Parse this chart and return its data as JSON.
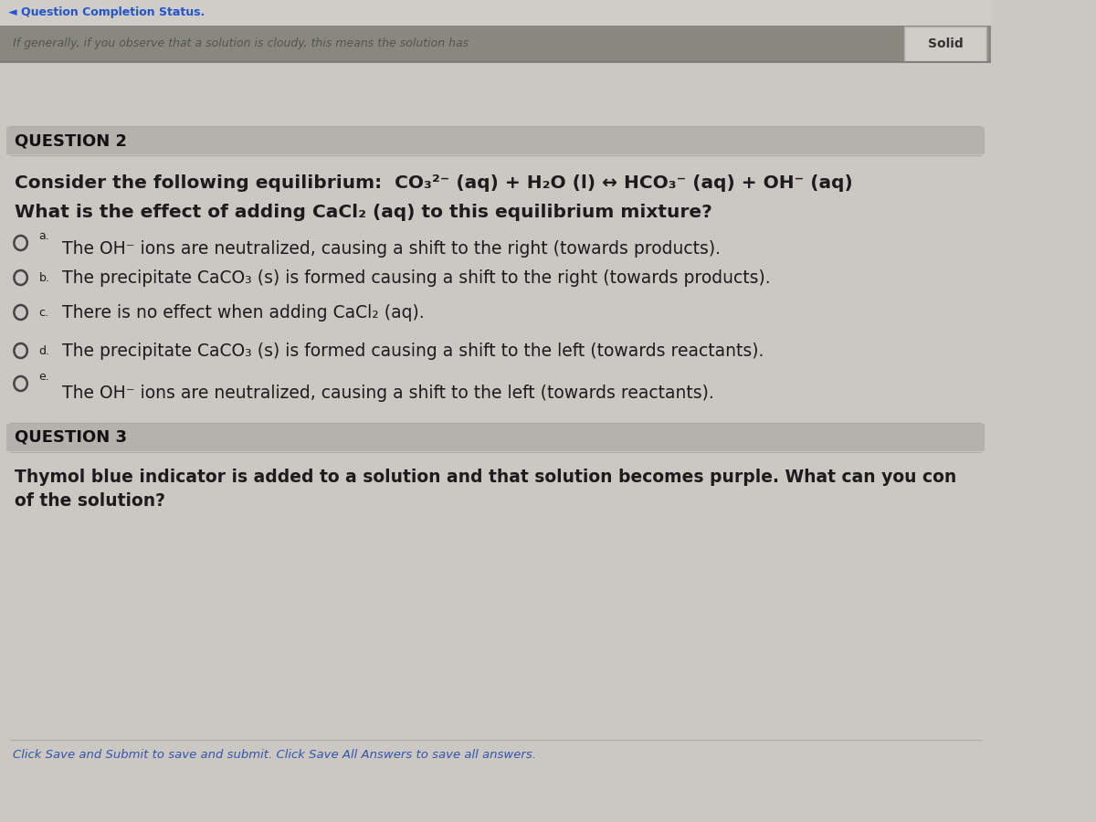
{
  "bg_color": "#cbc7c3",
  "header_bg": "#2a2a2a",
  "section_header_bg": "#b8b4b0",
  "title1": "QUESTION 2",
  "title2": "QUESTION 3",
  "eq_line1": "Consider the following equilibrium:  CO₃²⁻ (aq) + H₂O (l) ↔ HCO₃⁻ (aq) + OH⁻ (aq)",
  "eq_line2": "What is the effect of adding CaCl₂ (aq) to this equilibrium mixture?",
  "option_a_label": "a.",
  "option_a_text": "The OH⁻ ions are neutralized, causing a shift to the right (towards products).",
  "option_b_label": "b.",
  "option_b_text": "The precipitate CaCO₃ (s) is formed causing a shift to the right (towards products).",
  "option_c_label": "c.",
  "option_c_text": "There is no effect when adding CaCl₂ (aq).",
  "option_d_label": "d.",
  "option_d_text": "The precipitate CaCO₃ (s) is formed causing a shift to the left (towards reactants).",
  "option_e_label": "e.",
  "option_e_text": "The OH⁻ ions are neutralized, causing a shift to the left (towards reactants).",
  "q3_text1": "Thymol blue indicator is added to a solution and that solution becomes purple. What can you con",
  "q3_text2": "of the solution?",
  "footer": "Click Save and Submit to save and submit. Click Save All Answers to save all answers.",
  "top_bar_blurred": "If generally, if you observe that a solution is cloudy, this means the solution has",
  "top_bar_solid": "Solid",
  "top_status": "◄ Question Completion Status.",
  "font_color": "#1c1c1c",
  "radio_color": "#444444",
  "section_line_color": "#999999",
  "footer_link_color": "#3355aa"
}
